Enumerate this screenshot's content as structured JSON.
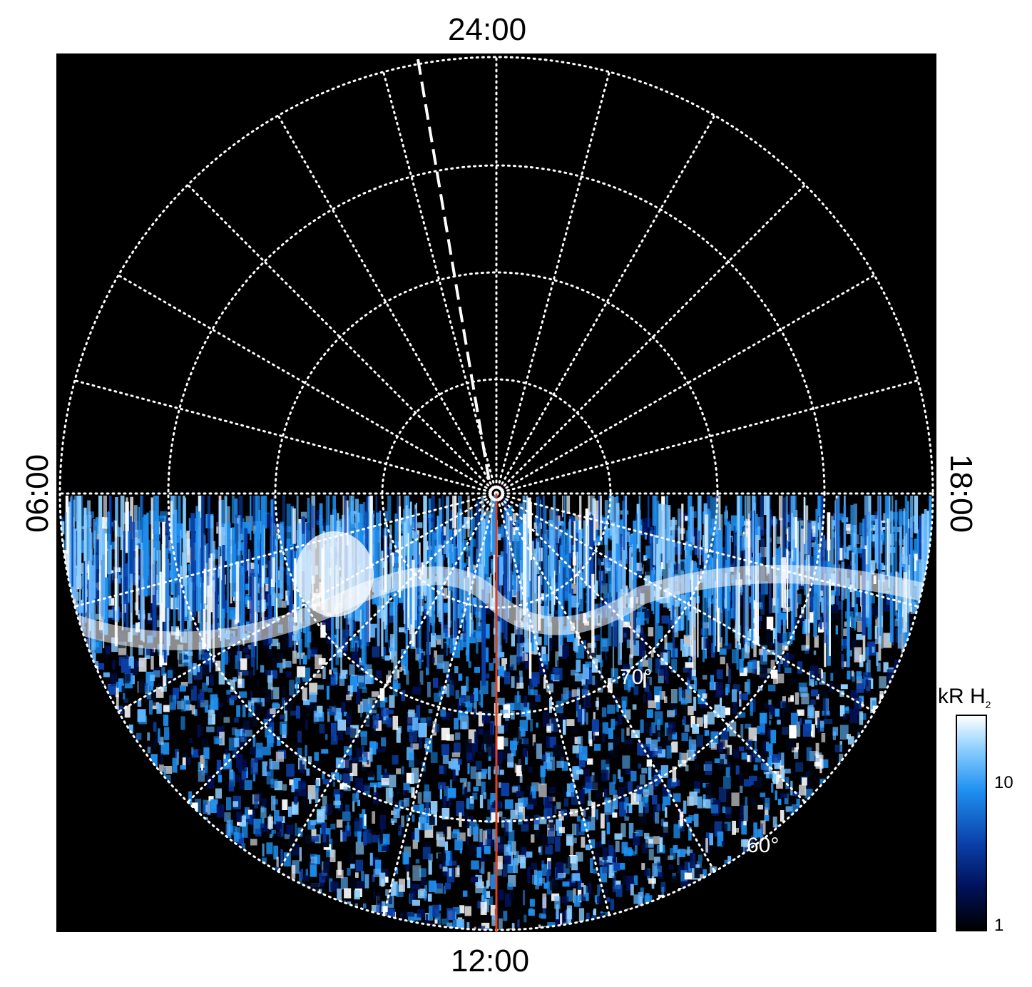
{
  "labels": {
    "top": "24:00",
    "bottom": "12:00",
    "left": "06:00",
    "right": "18:00",
    "lat_70": "70°",
    "lat_60": "60°"
  },
  "colorbar": {
    "title": "kR H",
    "title_sub": "2",
    "ticks": [
      "10",
      "1"
    ]
  },
  "colors": {
    "background": "#000000",
    "grid": "#ffffff",
    "noon_line": "#e0401a",
    "emission_low": "#000820",
    "emission_mid": "#1e8ff0",
    "emission_high": "#ffffff"
  }
}
